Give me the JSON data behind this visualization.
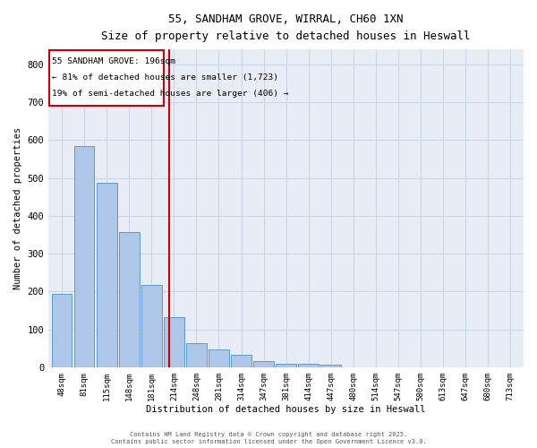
{
  "title_line1": "55, SANDHAM GROVE, WIRRAL, CH60 1XN",
  "title_line2": "Size of property relative to detached houses in Heswall",
  "xlabel": "Distribution of detached houses by size in Heswall",
  "ylabel": "Number of detached properties",
  "bar_labels": [
    "48sqm",
    "81sqm",
    "115sqm",
    "148sqm",
    "181sqm",
    "214sqm",
    "248sqm",
    "281sqm",
    "314sqm",
    "347sqm",
    "381sqm",
    "414sqm",
    "447sqm",
    "480sqm",
    "514sqm",
    "547sqm",
    "580sqm",
    "613sqm",
    "647sqm",
    "680sqm",
    "713sqm"
  ],
  "bar_heights": [
    193,
    585,
    487,
    357,
    217,
    133,
    63,
    46,
    33,
    15,
    10,
    10,
    6,
    0,
    0,
    0,
    0,
    0,
    0,
    0,
    0
  ],
  "bar_color": "#aec6e8",
  "bar_edgecolor": "#5b9bd5",
  "vline_x": 4.78,
  "vline_color": "#cc0000",
  "annotation_title": "55 SANDHAM GROVE: 196sqm",
  "annotation_line2": "← 81% of detached houses are smaller (1,723)",
  "annotation_line3": "19% of semi-detached houses are larger (406) →",
  "annotation_box_color": "#cc0000",
  "ylim": [
    0,
    840
  ],
  "yticks": [
    0,
    100,
    200,
    300,
    400,
    500,
    600,
    700,
    800
  ],
  "grid_color": "#c8d4e8",
  "bg_color": "#e8edf5",
  "fig_bg_color": "#ffffff",
  "footer_line1": "Contains HM Land Registry data © Crown copyright and database right 2025.",
  "footer_line2": "Contains public sector information licensed under the Open Government Licence v3.0."
}
